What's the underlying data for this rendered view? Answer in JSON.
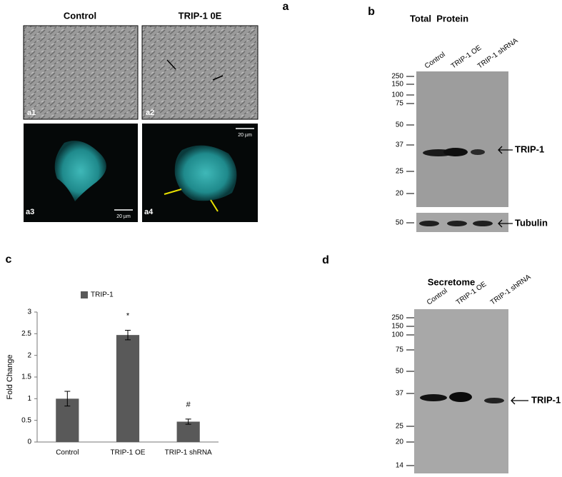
{
  "panel_a": {
    "label": "a",
    "columns": [
      "Control",
      "TRIP-1 0E"
    ],
    "images": [
      "a1",
      "a2",
      "a3",
      "a4"
    ],
    "scale_bars": [
      "20 µm",
      "20 µm"
    ]
  },
  "panel_b": {
    "label": "b",
    "title": "Total  Protein",
    "lanes": [
      "Control",
      "TRIP-1 OE",
      "TRIP-1 shRNA"
    ],
    "markers": [
      250,
      150,
      100,
      75,
      50,
      37,
      25,
      20
    ],
    "band": "TRIP-1",
    "loading_marker": 50,
    "loading_band": "Tubulin"
  },
  "panel_c": {
    "label": "c"
  },
  "chart_data": {
    "type": "bar",
    "categories": [
      "Control",
      "TRIP-1 OE",
      "TRIP-1 shRNA"
    ],
    "series": [
      {
        "name": "TRIP-1",
        "color": "#595959",
        "values": [
          1.0,
          2.47,
          0.47
        ],
        "errors": [
          0.17,
          0.11,
          0.06
        ]
      }
    ],
    "ylabel": "Fold Change",
    "ylim": [
      0,
      3
    ],
    "yticks": [
      0,
      0.5,
      1,
      1.5,
      2,
      2.5,
      3
    ],
    "annotations": [
      {
        "text": "*",
        "x": "TRIP-1 OE"
      },
      {
        "text": "#",
        "x": "TRIP-1 shRNA"
      }
    ],
    "legend": "top"
  },
  "panel_d": {
    "label": "d",
    "title": "Secretome",
    "lanes": [
      "Control",
      "TRIP-1 OE",
      "TRIP-1 shRNA"
    ],
    "markers": [
      250,
      150,
      100,
      75,
      50,
      37,
      25,
      20,
      14
    ],
    "band": "TRIP-1"
  }
}
